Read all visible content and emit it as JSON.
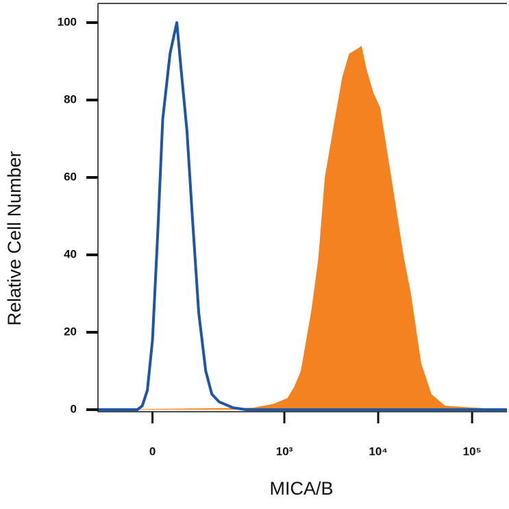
{
  "chart_data": {
    "type": "line",
    "xlabel": "MICA/B",
    "ylabel": "Relative Cell Number",
    "xscale": "biexponential",
    "xlim": [
      -140,
      235000
    ],
    "ylim": [
      0,
      100
    ],
    "xticks": [
      0,
      {
        "value": 1000,
        "label": "10³"
      },
      {
        "value": 10000,
        "label": "10⁴"
      },
      {
        "value": 100000,
        "label": "10⁵"
      }
    ],
    "yticks": [
      0,
      20,
      40,
      60,
      80,
      100
    ],
    "series": [
      {
        "color": "#f58220",
        "style": "area",
        "x": [
          -140,
          460,
          770,
          1080,
          1280,
          1500,
          1950,
          2300,
          2700,
          3500,
          4150,
          4900,
          5800,
          6650,
          7500,
          8850,
          10500,
          14650,
          18850,
          22300,
          28700,
          36900,
          51600,
          235000
        ],
        "values": [
          0,
          0.5,
          1.5,
          3,
          6,
          10,
          26,
          39,
          60,
          76,
          86,
          92,
          93,
          94,
          88,
          82,
          78,
          56,
          39,
          30,
          12,
          4,
          1,
          0
        ]
      },
      {
        "color": "#1f55a5",
        "style": "line",
        "x": [
          -140,
          -30,
          -20,
          -10,
          0,
          10,
          20,
          35,
          50,
          60,
          75,
          90,
          110,
          135,
          160,
          195,
          280,
          390,
          235000
        ],
        "values": [
          0,
          0,
          1,
          5,
          18,
          45,
          75,
          92,
          100,
          88,
          72,
          50,
          25,
          10,
          4,
          2,
          0.5,
          0,
          0
        ]
      }
    ]
  }
}
